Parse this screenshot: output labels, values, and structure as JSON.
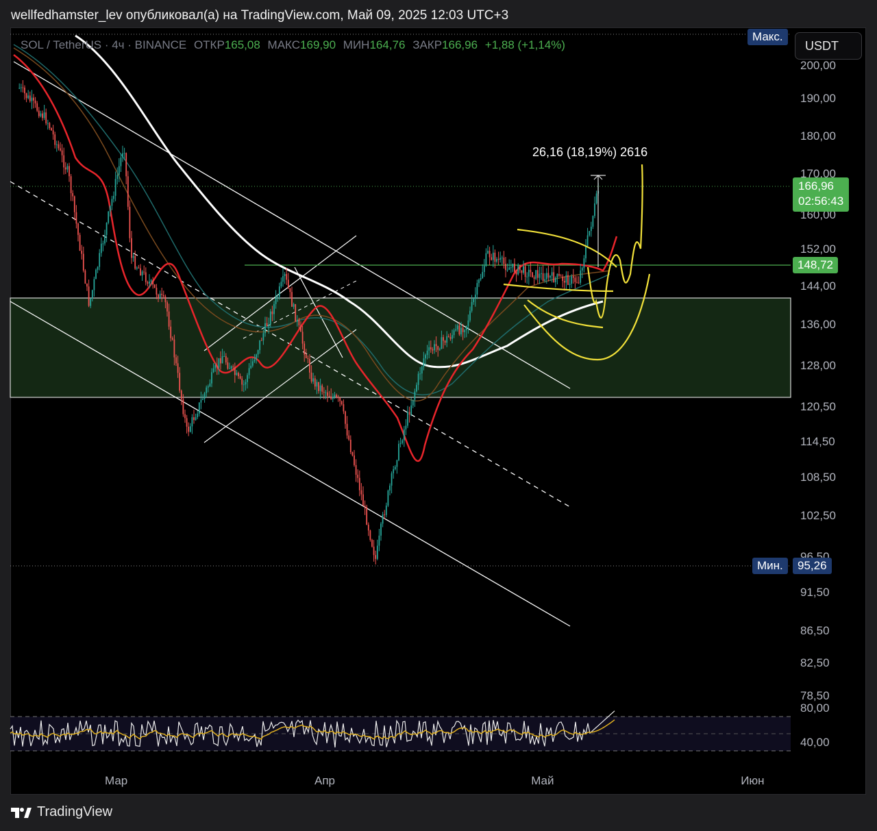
{
  "header": {
    "published_by": "wellfedhamster_lev опубликовал(а) на TradingView.com, Май 09, 2025 12:03 UTC+3"
  },
  "legend": {
    "symbol": "SOL / TetherUS · 4ч · BINANCE",
    "open_label": "ОТКР",
    "open": "165,08",
    "high_label": "МАКС",
    "high": "169,90",
    "low_label": "МИН",
    "low": "164,76",
    "close_label": "ЗАКР",
    "close": "166,96",
    "change": "+1,88 (+1,14%)"
  },
  "currency_button": "USDT",
  "badges": {
    "max_label": "Макс.",
    "min_label": "Мин.",
    "min_value": "95,26",
    "last_price": "166,96",
    "countdown": "02:56:43",
    "level_price": "148,72"
  },
  "measure_label": "26,16 (18,19%) 2616",
  "footer": {
    "brand": "TradingView"
  },
  "colors": {
    "up": "#26a69a",
    "down": "#ef5350",
    "green_badge": "#4caf50",
    "blue_badge": "#1e3a6e",
    "yellow": "#f2e13a",
    "ma_red": "#e8252b",
    "ma_white": "#ffffff",
    "zone": "#1a2f1a"
  },
  "chart_data": {
    "type": "candlestick",
    "title": "SOL / TetherUS · 4ч · BINANCE",
    "y_axis_ticks": [
      200.0,
      190.0,
      180.0,
      170.0,
      160.0,
      152.0,
      144.0,
      136.0,
      128.0,
      120.5,
      114.5,
      108.5,
      102.5,
      96.5,
      91.5,
      86.5,
      82.5,
      78.5
    ],
    "y_axis_labels": [
      "200,00",
      "190,00",
      "180,00",
      "170,00",
      "160,00",
      "152,00",
      "144,00",
      "136,00",
      "128,00",
      "120,50",
      "114,50",
      "108,50",
      "102,50",
      "96,50",
      "91,50",
      "86,50",
      "82,50",
      "78,50"
    ],
    "x_axis_labels": [
      "Мар",
      "Апр",
      "Май",
      "Июн"
    ],
    "price_path": [
      {
        "date": "2025-02-15",
        "price": 193
      },
      {
        "date": "2025-02-19",
        "price": 184
      },
      {
        "date": "2025-02-22",
        "price": 170
      },
      {
        "date": "2025-02-25",
        "price": 140
      },
      {
        "date": "2025-03-02",
        "price": 178
      },
      {
        "date": "2025-03-03",
        "price": 150
      },
      {
        "date": "2025-03-08",
        "price": 140
      },
      {
        "date": "2025-03-11",
        "price": 116
      },
      {
        "date": "2025-03-16",
        "price": 130
      },
      {
        "date": "2025-03-19",
        "price": 124
      },
      {
        "date": "2025-03-25",
        "price": 146
      },
      {
        "date": "2025-03-29",
        "price": 125
      },
      {
        "date": "2025-04-02",
        "price": 121
      },
      {
        "date": "2025-04-07",
        "price": 96
      },
      {
        "date": "2025-04-08",
        "price": 102
      },
      {
        "date": "2025-04-10",
        "price": 112
      },
      {
        "date": "2025-04-14",
        "price": 130
      },
      {
        "date": "2025-04-20",
        "price": 136
      },
      {
        "date": "2025-04-23",
        "price": 151
      },
      {
        "date": "2025-04-26",
        "price": 148
      },
      {
        "date": "2025-05-01",
        "price": 146
      },
      {
        "date": "2025-05-06",
        "price": 145
      },
      {
        "date": "2025-05-09",
        "price": 167
      }
    ],
    "ohlc_last": {
      "open": 165.08,
      "high": 169.9,
      "low": 164.76,
      "close": 166.96,
      "change": 1.88,
      "change_pct": 1.14
    },
    "range_high_label": "Макс.",
    "range_low": 95.26,
    "horizontal_level": 148.72,
    "zone": [
      122,
      142
    ],
    "rsi": {
      "levels": [
        30,
        50,
        70
      ],
      "tick_labels": [
        "80,00",
        "40,00"
      ]
    }
  }
}
